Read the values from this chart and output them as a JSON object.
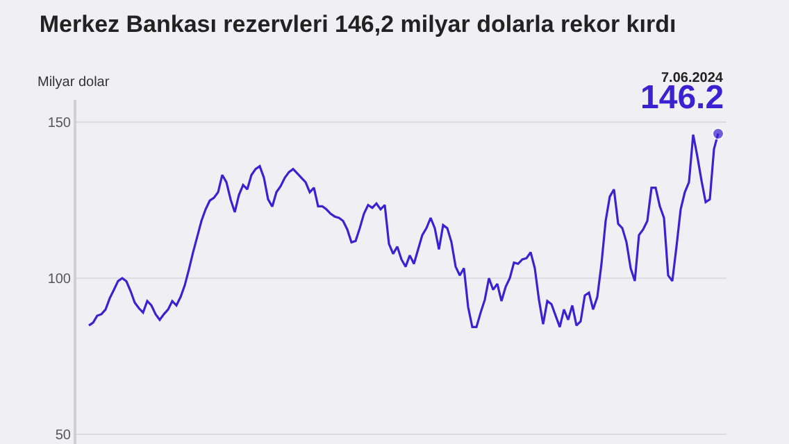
{
  "chart_data": {
    "type": "line",
    "title": "Merkez Bankası rezervleri 146,2 milyar dolarla rekor kırdı",
    "ylabel": "Milyar dolar",
    "categories": [
      null,
      null,
      null,
      null,
      null,
      null,
      null,
      null,
      null,
      null,
      null,
      null,
      null,
      null,
      null,
      null,
      null,
      null,
      null,
      null,
      null,
      null,
      null,
      null,
      null,
      null,
      null,
      null,
      null,
      null,
      null,
      null,
      null,
      null,
      null,
      null,
      null,
      null,
      null,
      null,
      null,
      null,
      null,
      null,
      null,
      null,
      null,
      null,
      null,
      null,
      null,
      null,
      null,
      null,
      null,
      null,
      null,
      null,
      null,
      null,
      null,
      null,
      null,
      null,
      null,
      null,
      null,
      null,
      null,
      null,
      null,
      null,
      null,
      null,
      null,
      null,
      null,
      null,
      null,
      null,
      null,
      null,
      null,
      null,
      null,
      null,
      null,
      null,
      null,
      null,
      null,
      null,
      null,
      null,
      null,
      null,
      null,
      null,
      null,
      null,
      null,
      null,
      null,
      null,
      null,
      null,
      null,
      null,
      null,
      null,
      null,
      null,
      null,
      null,
      null,
      null,
      null,
      null,
      null,
      null,
      null,
      null,
      null,
      null,
      null,
      null,
      null,
      null,
      null,
      null,
      null,
      null,
      null,
      null,
      null,
      null,
      null,
      null,
      null,
      null,
      null,
      null,
      null,
      null,
      null,
      null,
      null,
      null,
      null,
      null,
      null,
      null
    ],
    "series": [
      {
        "color": "#3a22d0",
        "values": [
          84.9,
          85.8,
          88,
          88.5,
          90,
          93.6,
          96.3,
          99.1,
          100,
          99,
          95.9,
          92.2,
          90.4,
          89,
          92.7,
          91.3,
          88.5,
          86.7,
          88.5,
          90,
          92.7,
          91.3,
          94,
          97.7,
          102.8,
          108.3,
          113.3,
          118.3,
          122,
          124.8,
          125.7,
          127.5,
          133,
          130.7,
          125.2,
          121.1,
          126.6,
          129.8,
          128.4,
          133,
          134.9,
          135.8,
          132.1,
          125.2,
          122.9,
          127.5,
          129.4,
          132.1,
          133.9,
          134.9,
          133.5,
          132.1,
          130.7,
          127.5,
          128.9,
          123,
          123,
          122,
          120.6,
          119.7,
          119.3,
          118.3,
          115.6,
          111.5,
          111.9,
          116,
          120.6,
          123.4,
          122.5,
          123.9,
          122,
          123.4,
          111,
          107.8,
          110.1,
          106,
          103.7,
          107.3,
          104.6,
          109.2,
          113.8,
          116,
          119.3,
          116,
          109.2,
          117,
          116,
          111.5,
          103.7,
          100.9,
          103.2,
          90.8,
          84.4,
          84.4,
          89,
          93.1,
          100,
          96.3,
          98.2,
          92.7,
          97.2,
          100,
          105,
          104.6,
          106,
          106.4,
          108.3,
          103.2,
          93.1,
          85.3,
          92.7,
          91.7,
          88,
          84.4,
          90,
          86.7,
          91.3,
          84.9,
          86.2,
          94.5,
          95.4,
          90,
          94,
          104.6,
          118.3,
          126.1,
          128.4,
          117.4,
          116,
          111.5,
          103.2,
          99.1,
          113.8,
          115.6,
          118.3,
          128.9,
          128.9,
          123,
          119.3,
          100.9,
          99.1,
          110.1,
          122,
          127.5,
          130.7,
          145.9,
          139,
          131.2,
          124.3,
          125.2,
          141.3,
          146.2
        ]
      }
    ],
    "ylim": [
      47,
      157
    ],
    "yticks": [
      50,
      100,
      150
    ],
    "grid": "y",
    "marker": "none",
    "line_style": "solid",
    "annotations": [
      "7.06.2024",
      "146.2"
    ]
  }
}
